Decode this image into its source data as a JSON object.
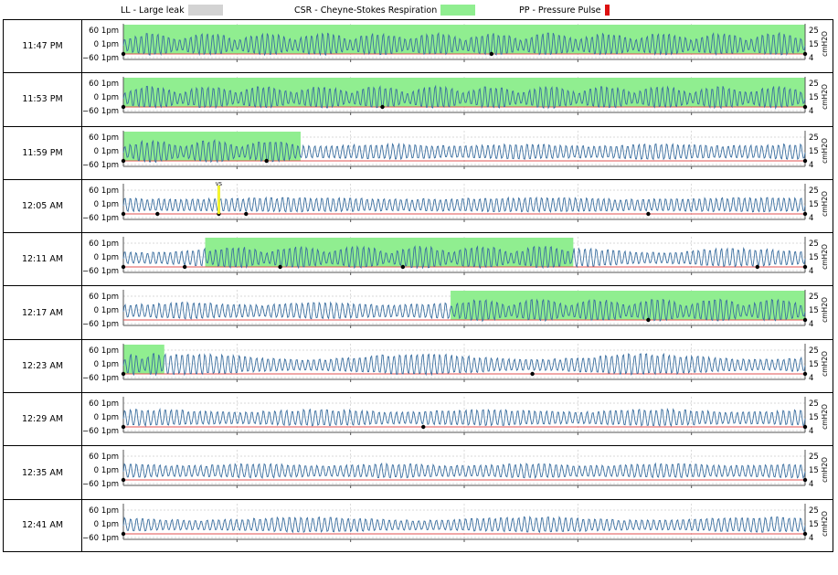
{
  "legend": [
    {
      "label": "LL - Large leak",
      "color": "#d3d3d3"
    },
    {
      "label": "CSR - Cheyne-Stokes Respiration",
      "color": "#90ee90"
    },
    {
      "label": "PP - Pressure Pulse",
      "color": "#dd1111"
    }
  ],
  "axes": {
    "left_ticks": [
      "60 1pm",
      "0 1pm",
      "−60 1pm"
    ],
    "right_ticks": [
      "25",
      "15",
      "4"
    ],
    "right_label": "cmH2O"
  },
  "colors": {
    "flow": "#3b6fa0",
    "pressure": "#e05050",
    "csr": "#90ee90",
    "grid": "#cccccc",
    "event": "#000000",
    "flag": "#ffff33"
  },
  "chart_data": {
    "type": "line",
    "title": "",
    "xlabel": "",
    "ylabel_left": "1pm",
    "ylabel_right": "cmH2O",
    "ylim_left": [
      -60,
      60
    ],
    "ylim_right": [
      4,
      25
    ],
    "row_duration_min": 6,
    "grid": true,
    "legend_position": "top",
    "rows": [
      {
        "time": "11:47 PM",
        "csr": [
          [
            0.0,
            1.0
          ]
        ],
        "events": [
          0.0,
          0.54,
          1.0
        ],
        "amp": [
          0.55,
          0.9
        ],
        "flags": []
      },
      {
        "time": "11:53 PM",
        "csr": [
          [
            0.0,
            1.0
          ]
        ],
        "events": [
          0.0,
          0.38,
          1.0
        ],
        "amp": [
          0.6,
          0.95
        ],
        "flags": []
      },
      {
        "time": "11:59 PM",
        "csr": [
          [
            0.0,
            0.26
          ]
        ],
        "events": [
          0.0,
          0.21,
          1.0
        ],
        "amp": [
          0.55,
          0.7
        ],
        "flags": []
      },
      {
        "time": "12:05 AM",
        "csr": [],
        "events": [
          0.0,
          0.05,
          0.14,
          0.18,
          0.77,
          1.0
        ],
        "amp": [
          0.55,
          0.65
        ],
        "flags": [
          {
            "x": 0.14,
            "label": "VS"
          }
        ]
      },
      {
        "time": "12:11 AM",
        "csr": [
          [
            0.12,
            0.66
          ]
        ],
        "events": [
          0.0,
          0.09,
          0.23,
          0.41,
          0.93,
          1.0
        ],
        "amp": [
          0.5,
          0.85
        ],
        "flags": []
      },
      {
        "time": "12:17 AM",
        "csr": [
          [
            0.48,
            1.0
          ]
        ],
        "events": [
          0.77,
          1.0
        ],
        "amp": [
          0.55,
          0.75
        ],
        "flags": []
      },
      {
        "time": "12:23 AM",
        "csr": [
          [
            0.0,
            0.06
          ]
        ],
        "events": [
          0.0,
          0.6,
          1.0
        ],
        "amp": [
          0.5,
          0.95
        ],
        "flags": []
      },
      {
        "time": "12:29 AM",
        "csr": [],
        "events": [
          0.0,
          0.44,
          1.0
        ],
        "amp": [
          0.55,
          0.75
        ],
        "flags": []
      },
      {
        "time": "12:35 AM",
        "csr": [],
        "events": [
          0.0,
          1.0
        ],
        "amp": [
          0.5,
          0.65
        ],
        "flags": []
      },
      {
        "time": "12:41 AM",
        "csr": [],
        "events": [
          0.0,
          1.0
        ],
        "amp": [
          0.45,
          0.7
        ],
        "flags": []
      }
    ]
  }
}
